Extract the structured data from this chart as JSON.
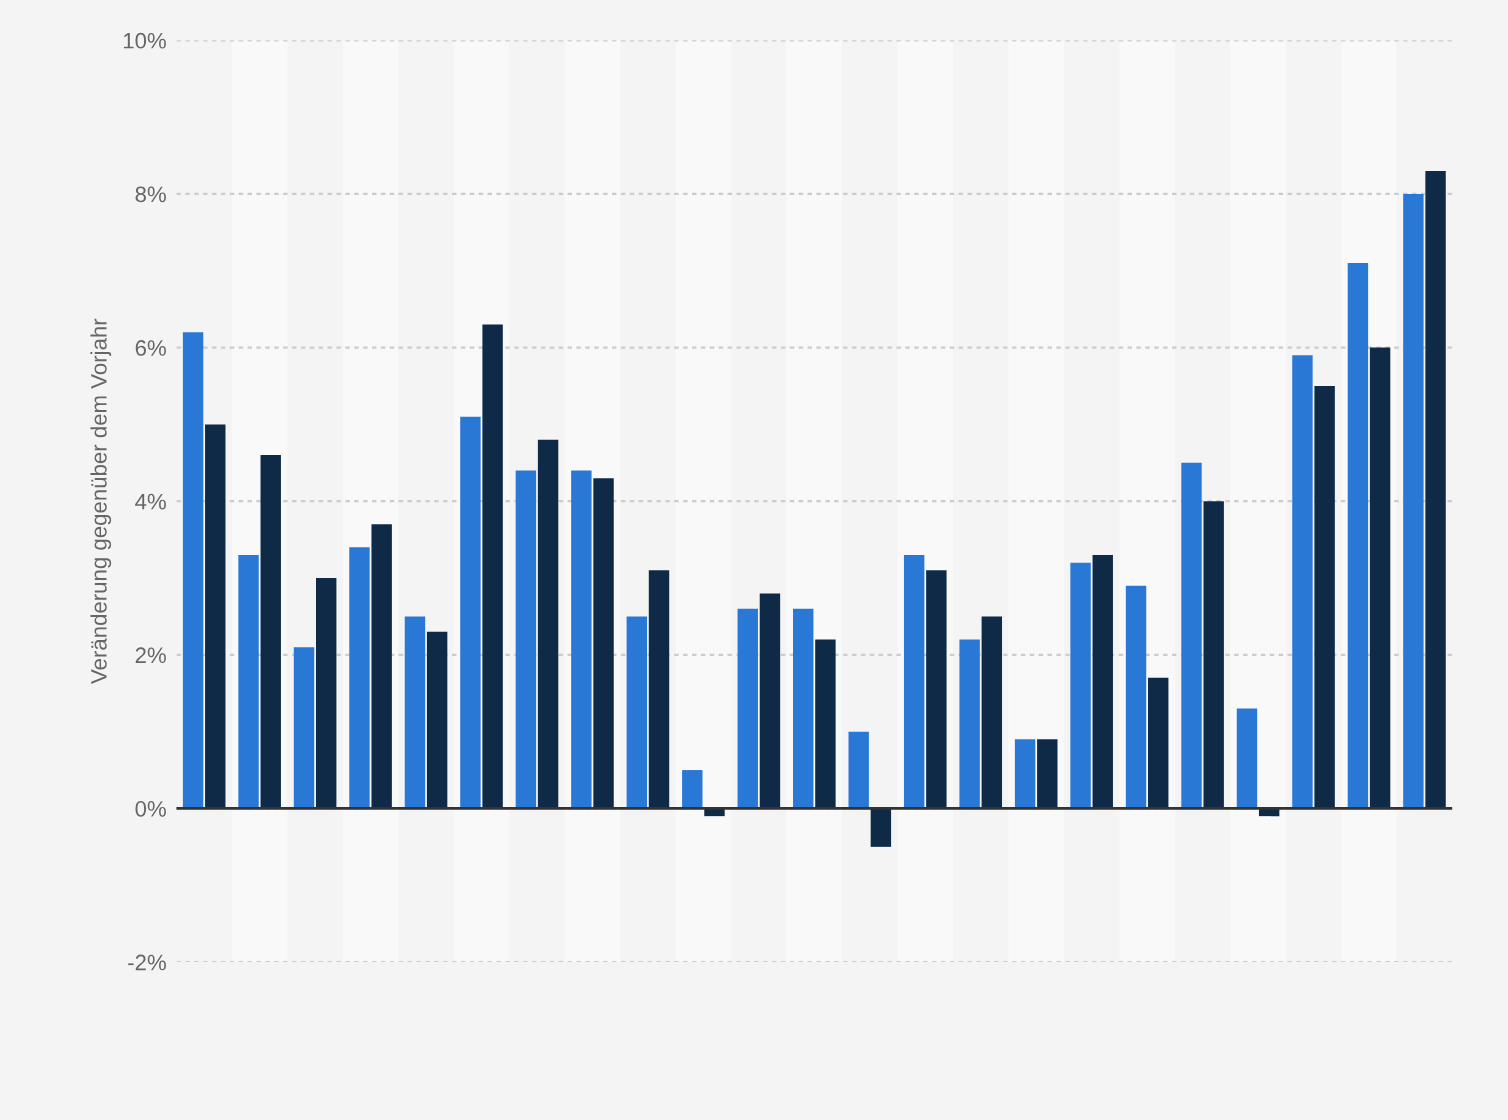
{
  "chart_data": {
    "type": "bar",
    "ylabel": "Veränderung gegenüber dem Vorjahr",
    "categories": [
      null,
      null,
      null,
      null,
      null,
      null,
      null,
      null,
      null,
      null,
      null,
      null,
      null,
      null,
      null,
      null,
      null,
      null,
      null,
      null,
      null,
      null,
      null
    ],
    "series": [
      {
        "color": "#2a78d6",
        "values": [
          6.2,
          3.3,
          2.1,
          3.4,
          2.5,
          5.1,
          4.4,
          4.4,
          2.5,
          0.5,
          2.6,
          2.6,
          1.0,
          3.3,
          2.2,
          0.9,
          3.2,
          2.9,
          4.5,
          1.3,
          5.9,
          7.1,
          8.0
        ]
      },
      {
        "color": "#0f2a47",
        "values": [
          5.0,
          4.6,
          3.0,
          3.7,
          2.3,
          6.3,
          4.8,
          4.3,
          3.1,
          -0.1,
          2.8,
          2.2,
          -0.5,
          3.1,
          2.5,
          0.9,
          3.3,
          1.7,
          4.0,
          -0.1,
          5.5,
          6.0,
          8.3
        ]
      }
    ],
    "ylim": [
      -2,
      10
    ],
    "yticks": [
      {
        "value": -2,
        "label": "-2%"
      },
      {
        "value": 0,
        "label": "0%"
      },
      {
        "value": 2,
        "label": "2%"
      },
      {
        "value": 4,
        "label": "4%"
      },
      {
        "value": 6,
        "label": "6%"
      },
      {
        "value": 8,
        "label": "8%"
      },
      {
        "value": 10,
        "label": "10%"
      }
    ],
    "grid": "y",
    "legend": false
  }
}
